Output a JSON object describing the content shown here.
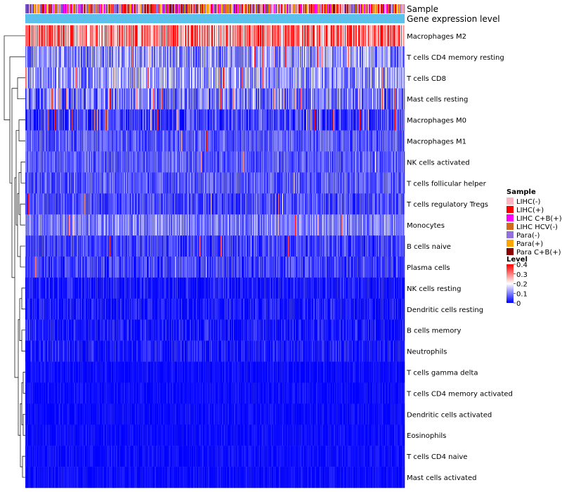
{
  "chart_data": {
    "type": "heatmap",
    "annotation_tracks": [
      "Sample",
      "Gene expression level"
    ],
    "rows": [
      {
        "label": "Macrophages M2",
        "mean": 0.3,
        "spread": 0.12,
        "hot_prob": 0.25
      },
      {
        "label": "T cells CD4 memory resting",
        "mean": 0.11,
        "spread": 0.08,
        "hot_prob": 0.06
      },
      {
        "label": "T cells CD8",
        "mean": 0.12,
        "spread": 0.08,
        "hot_prob": 0.06
      },
      {
        "label": "Mast cells resting",
        "mean": 0.09,
        "spread": 0.08,
        "hot_prob": 0.05
      },
      {
        "label": "Macrophages M0",
        "mean": 0.05,
        "spread": 0.06,
        "hot_prob": 0.05
      },
      {
        "label": "Macrophages M1",
        "mean": 0.07,
        "spread": 0.05,
        "hot_prob": 0.01
      },
      {
        "label": "NK cells activated",
        "mean": 0.07,
        "spread": 0.05,
        "hot_prob": 0.01
      },
      {
        "label": "T cells follicular helper",
        "mean": 0.07,
        "spread": 0.05,
        "hot_prob": 0.01
      },
      {
        "label": "T cells regulatory  Tregs",
        "mean": 0.06,
        "spread": 0.05,
        "hot_prob": 0.01
      },
      {
        "label": "Monocytes",
        "mean": 0.1,
        "spread": 0.06,
        "hot_prob": 0.02
      },
      {
        "label": "B cells naive",
        "mean": 0.05,
        "spread": 0.05,
        "hot_prob": 0.01
      },
      {
        "label": "Plasma cells",
        "mean": 0.05,
        "spread": 0.05,
        "hot_prob": 0.01
      },
      {
        "label": "NK cells resting",
        "mean": 0.02,
        "spread": 0.04,
        "hot_prob": 0.0
      },
      {
        "label": "Dendritic cells resting",
        "mean": 0.02,
        "spread": 0.04,
        "hot_prob": 0.0
      },
      {
        "label": "B cells memory",
        "mean": 0.02,
        "spread": 0.04,
        "hot_prob": 0.0
      },
      {
        "label": "Neutrophils",
        "mean": 0.02,
        "spread": 0.04,
        "hot_prob": 0.0
      },
      {
        "label": "T cells gamma delta",
        "mean": 0.01,
        "spread": 0.02,
        "hot_prob": 0.0
      },
      {
        "label": "T cells CD4 memory activated",
        "mean": 0.01,
        "spread": 0.02,
        "hot_prob": 0.0
      },
      {
        "label": "Dendritic cells activated",
        "mean": 0.01,
        "spread": 0.02,
        "hot_prob": 0.0
      },
      {
        "label": "Eosinophils",
        "mean": 0.01,
        "spread": 0.02,
        "hot_prob": 0.0
      },
      {
        "label": "T cells CD4 naive",
        "mean": 0.01,
        "spread": 0.02,
        "hot_prob": 0.0
      },
      {
        "label": "Mast cells activated",
        "mean": 0.01,
        "spread": 0.02,
        "hot_prob": 0.0
      }
    ],
    "n_columns": 540,
    "color_scale": {
      "range": [
        0,
        0.4
      ],
      "stops": [
        {
          "value": 0,
          "color": "#0000ff"
        },
        {
          "value": 0.2,
          "color": "#ffffff"
        },
        {
          "value": 0.4,
          "color": "#ff0000"
        }
      ]
    },
    "gene_expression_level_color": "#5bc0eb",
    "legends": {
      "sample": {
        "title": "Sample",
        "items": [
          {
            "label": "LIHC(-)",
            "color": "#ffb6c1"
          },
          {
            "label": "LIHC(+)",
            "color": "#ff0000"
          },
          {
            "label": "LIHC C+B(+)",
            "color": "#ff00ff"
          },
          {
            "label": "LIHC HCV(-)",
            "color": "#d2691e"
          },
          {
            "label": "Para(-)",
            "color": "#9370db"
          },
          {
            "label": "Para(+)",
            "color": "#ffa500"
          },
          {
            "label": "Para C+B(+)",
            "color": "#8b0000"
          }
        ]
      },
      "level": {
        "title": "Level",
        "ticks": [
          {
            "value": 0.4,
            "label": "0.4"
          },
          {
            "value": 0.3,
            "label": "0.3"
          },
          {
            "value": 0.2,
            "label": "0.2"
          },
          {
            "value": 0.1,
            "label": "0.1"
          },
          {
            "value": 0,
            "label": "0"
          }
        ]
      }
    }
  }
}
